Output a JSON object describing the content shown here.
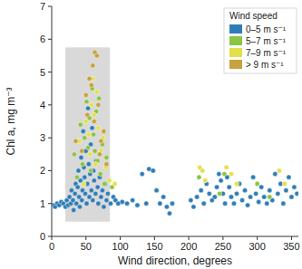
{
  "chart_data": {
    "type": "scatter",
    "x_label": "Wind direction, degrees",
    "y_label": "Chl a, mg m⁻³",
    "xlim": [
      0,
      360
    ],
    "xticks": [
      0,
      50,
      100,
      150,
      200,
      250,
      300,
      350
    ],
    "ylim": [
      0,
      7
    ],
    "yticks": [
      0,
      1,
      2,
      3,
      4,
      5,
      6,
      7
    ],
    "legend": "upper right",
    "legend_title": "Wind speed",
    "marker": "circle",
    "shaded_region": {
      "xlim": [
        20,
        85
      ],
      "ylim": [
        0.45,
        5.75
      ]
    },
    "series": [
      {
        "name": "0–5 m s⁻¹",
        "color": "#2f7db6",
        "x": [
          2,
          5,
          8,
          11,
          14,
          17,
          20,
          22,
          24,
          26,
          28,
          29,
          31,
          32,
          34,
          35,
          36,
          38,
          39,
          40,
          41,
          42,
          43,
          44,
          45,
          46,
          47,
          48,
          49,
          50,
          51,
          52,
          53,
          54,
          55,
          56,
          57,
          58,
          59,
          60,
          61,
          62,
          64,
          65,
          67,
          68,
          70,
          72,
          74,
          76,
          78,
          80,
          82,
          86,
          90,
          93,
          97,
          103,
          110,
          118,
          125,
          132,
          138,
          142,
          148,
          153,
          158,
          163,
          168,
          172,
          176,
          203,
          207,
          212,
          218,
          222,
          226,
          230,
          234,
          238,
          241,
          244,
          247,
          250,
          253,
          256,
          259,
          262,
          266,
          270,
          274,
          278,
          282,
          286,
          290,
          294,
          298,
          302,
          306,
          310,
          314,
          318,
          322,
          326,
          330,
          334,
          338,
          342,
          346,
          350,
          354,
          358
        ],
        "values": [
          0.95,
          0.9,
          1.0,
          0.95,
          1.05,
          1.0,
          0.9,
          1.1,
          0.95,
          1.2,
          1.0,
          1.4,
          1.1,
          0.8,
          1.3,
          1.6,
          1.0,
          1.5,
          2.0,
          1.2,
          0.9,
          1.7,
          2.4,
          1.1,
          1.4,
          3.2,
          2.1,
          1.8,
          1.3,
          2.6,
          1.0,
          1.6,
          3.9,
          2.2,
          1.2,
          1.9,
          2.8,
          1.4,
          3.3,
          1.1,
          2.0,
          1.7,
          1.3,
          2.3,
          1.5,
          1.0,
          1.8,
          1.2,
          1.4,
          0.9,
          1.6,
          1.1,
          1.3,
          1.0,
          1.2,
          1.1,
          1.0,
          1.05,
          1.0,
          1.1,
          0.95,
          1.9,
          1.0,
          2.05,
          2.0,
          1.4,
          1.0,
          1.2,
          0.9,
          0.7,
          1.0,
          1.1,
          0.9,
          1.2,
          1.4,
          1.0,
          1.6,
          1.3,
          1.1,
          1.2,
          1.5,
          1.9,
          1.7,
          1.3,
          1.0,
          1.8,
          1.5,
          1.2,
          1.0,
          1.3,
          1.6,
          1.1,
          1.4,
          0.95,
          1.2,
          1.8,
          1.3,
          1.05,
          1.5,
          1.2,
          1.0,
          1.4,
          1.1,
          1.9,
          1.3,
          1.6,
          1.0,
          1.4,
          1.8,
          1.2,
          1.5,
          1.3
        ]
      },
      {
        "name": "5–7 m s⁻¹",
        "color": "#8cc443",
        "x": [
          33,
          37,
          42,
          45,
          48,
          51,
          53,
          55,
          57,
          59,
          61,
          63,
          65,
          67,
          69,
          71,
          74,
          77,
          80,
          88,
          215,
          245,
          252,
          300,
          318
        ],
        "values": [
          2.5,
          1.8,
          3.4,
          2.2,
          3.0,
          4.1,
          2.7,
          3.6,
          2.0,
          4.5,
          3.1,
          2.6,
          3.8,
          2.3,
          4.2,
          1.9,
          2.8,
          1.6,
          2.4,
          1.5,
          1.8,
          1.3,
          1.9,
          1.6,
          1.2
        ]
      },
      {
        "name": "7–9 m s⁻¹",
        "color": "#e3e04c",
        "x": [
          40,
          47,
          50,
          54,
          56,
          58,
          60,
          62,
          64,
          66,
          68,
          72,
          75,
          79,
          84,
          92,
          216,
          220,
          224,
          255,
          262,
          270,
          332,
          340
        ],
        "values": [
          2.9,
          1.6,
          3.5,
          3.1,
          2.5,
          4.0,
          4.8,
          3.7,
          2.2,
          4.4,
          3.3,
          2.6,
          3.0,
          2.1,
          1.7,
          1.6,
          2.1,
          2.0,
          1.7,
          2.1,
          1.9,
          1.6,
          2.0,
          1.6
        ]
      },
      {
        "name": "> 9 m s⁻¹",
        "color": "#c9a13e",
        "x": [
          35,
          44,
          50,
          52,
          55,
          58,
          60,
          62,
          63,
          66,
          68,
          70,
          72,
          76,
          80
        ],
        "values": [
          2.9,
          2.6,
          4.3,
          3.7,
          4.8,
          4.6,
          5.2,
          3.5,
          5.6,
          5.5,
          4.0,
          2.5,
          2.9,
          3.2,
          2.2
        ]
      }
    ]
  }
}
